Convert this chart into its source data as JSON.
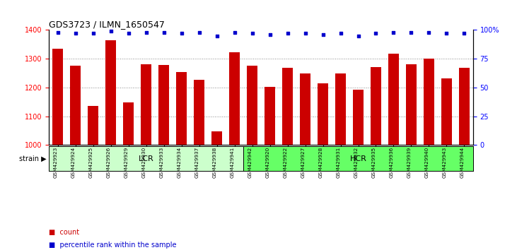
{
  "title": "GDS3723 / ILMN_1650547",
  "samples": [
    "GSM429923",
    "GSM429924",
    "GSM429925",
    "GSM429926",
    "GSM429929",
    "GSM429930",
    "GSM429933",
    "GSM429934",
    "GSM429937",
    "GSM429938",
    "GSM429941",
    "GSM429942",
    "GSM429920",
    "GSM429922",
    "GSM429927",
    "GSM429928",
    "GSM429931",
    "GSM429932",
    "GSM429935",
    "GSM429936",
    "GSM429939",
    "GSM429940",
    "GSM429943",
    "GSM429944"
  ],
  "counts": [
    1335,
    1275,
    1135,
    1365,
    1148,
    1282,
    1278,
    1255,
    1228,
    1047,
    1323,
    1275,
    1202,
    1268,
    1248,
    1215,
    1248,
    1192,
    1270,
    1317,
    1282,
    1300,
    1232,
    1268
  ],
  "percentiles": [
    98,
    97,
    97,
    99,
    97,
    98,
    98,
    97,
    98,
    95,
    98,
    97,
    96,
    97,
    97,
    96,
    97,
    95,
    97,
    98,
    98,
    98,
    97,
    97
  ],
  "lcr_count": 11,
  "hcr_count": 13,
  "lcr_label": "LCR",
  "hcr_label": "HCR",
  "strain_label": "strain",
  "bar_color": "#cc0000",
  "dot_color": "#0000cc",
  "lcr_color": "#ccffcc",
  "hcr_color": "#66ff66",
  "ylim_left": [
    1000,
    1400
  ],
  "ylim_right": [
    0,
    100
  ],
  "yticks_left": [
    1000,
    1100,
    1200,
    1300,
    1400
  ],
  "yticks_right": [
    0,
    25,
    50,
    75,
    100
  ],
  "legend_count": "count",
  "legend_pct": "percentile rank within the sample",
  "bg_color": "#ffffff",
  "grid_color": "#888888"
}
